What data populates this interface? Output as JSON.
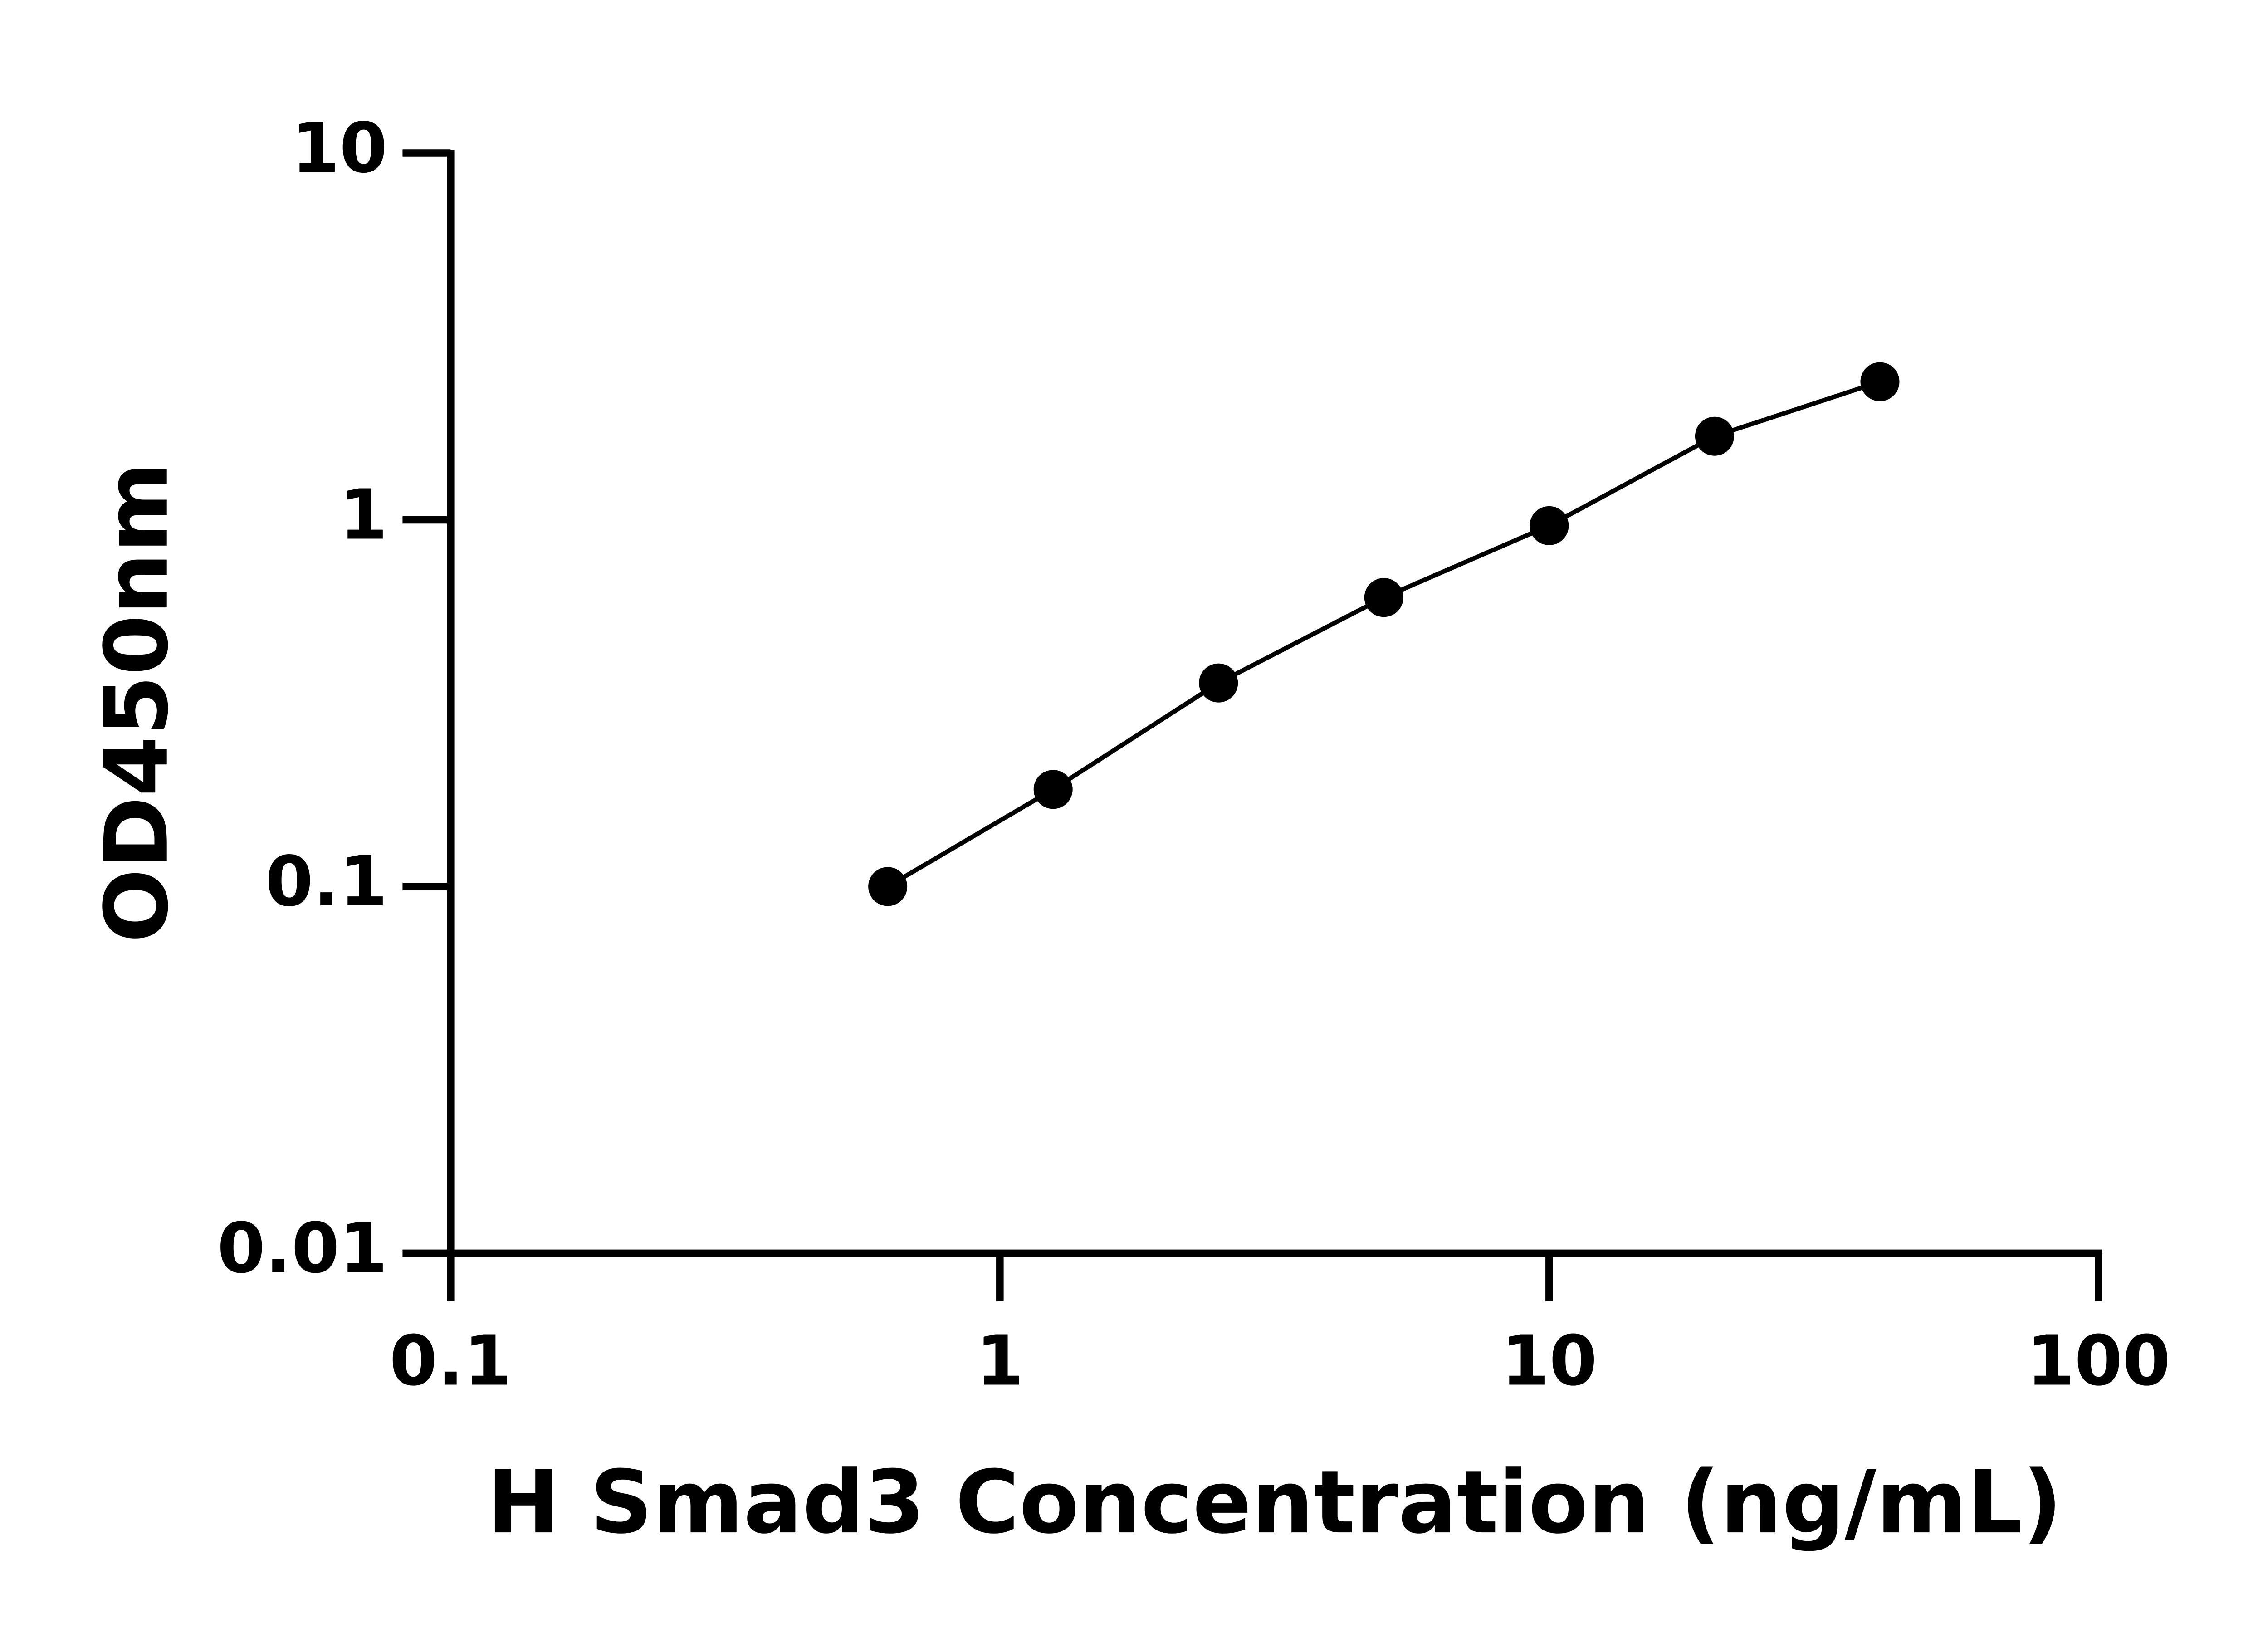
{
  "chart_data": {
    "type": "scatter",
    "x_label": "H Smad3 Concentration (ng/mL)",
    "y_label": "OD450nm",
    "x_log": true,
    "y_log": true,
    "xlim": [
      0.1,
      100
    ],
    "xticks": [
      0.1,
      1,
      10,
      100
    ],
    "ylim": [
      0.01,
      10
    ],
    "yticks": [
      0.01,
      0.1,
      1,
      10
    ],
    "connect": true,
    "series": [
      {
        "color": "#000000",
        "x": [
          0.625,
          1.25,
          2.5,
          5,
          10,
          20,
          40
        ],
        "values": [
          0.1,
          0.184,
          0.359,
          0.614,
          0.964,
          1.69,
          2.38
        ]
      }
    ]
  }
}
